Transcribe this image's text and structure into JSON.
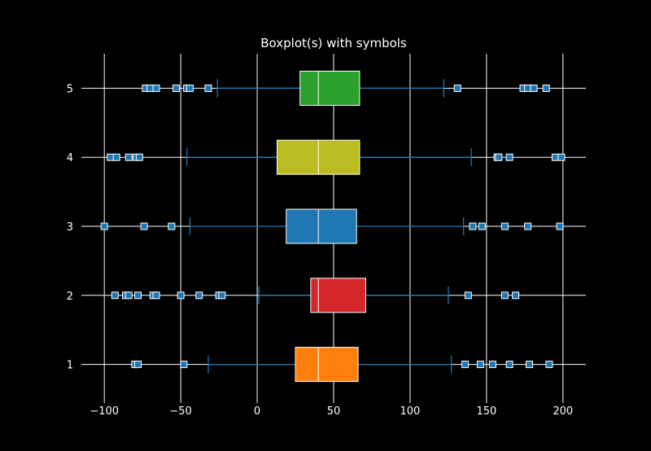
{
  "chart_data": {
    "type": "boxplot",
    "orientation": "horizontal",
    "title": "Boxplot(s) with symbols",
    "xlabel": "",
    "ylabel": "",
    "xlim": [
      -115,
      215
    ],
    "ylim": [
      0.5,
      5.5
    ],
    "xticks": [
      -100,
      -50,
      0,
      50,
      100,
      150,
      200
    ],
    "xtick_labels": [
      "−100",
      "−50",
      "0",
      "50",
      "100",
      "150",
      "200"
    ],
    "yticks": [
      1,
      2,
      3,
      4,
      5
    ],
    "ytick_labels": [
      "1",
      "2",
      "3",
      "4",
      "5"
    ],
    "grid": true,
    "colors": {
      "background": "#000000",
      "foreground": "#ffffff",
      "whisker": "#1f77b4",
      "flier_fill": "#1f77b4",
      "flier_edge": "#ffffff"
    },
    "boxes": [
      {
        "position": 1,
        "q1": 25,
        "median": 40,
        "q3": 66,
        "whisker_low": -32,
        "whisker_high": 127,
        "color": "#ff7f0e",
        "fliers": [
          -80,
          -78,
          -48,
          136,
          146,
          154,
          165,
          178,
          191
        ]
      },
      {
        "position": 2,
        "q1": 35,
        "median": 40,
        "q3": 71,
        "whisker_low": 1,
        "whisker_high": 125,
        "color": "#d62728",
        "fliers": [
          -93,
          -86,
          -84,
          -78,
          -68,
          -66,
          -50,
          -38,
          -25,
          -23,
          138,
          162,
          169
        ]
      },
      {
        "position": 3,
        "q1": 19,
        "median": 40,
        "q3": 65,
        "whisker_low": -44,
        "whisker_high": 135,
        "color": "#1f77b4",
        "fliers": [
          -100,
          -74,
          -56,
          141,
          147,
          162,
          177,
          198
        ]
      },
      {
        "position": 4,
        "q1": 13,
        "median": 40,
        "q3": 67,
        "whisker_low": -46,
        "whisker_high": 140,
        "color": "#bcbd22",
        "fliers": [
          -96,
          -92,
          -84,
          -79,
          -77,
          157,
          158,
          165,
          195,
          199
        ]
      },
      {
        "position": 5,
        "q1": 28,
        "median": 40,
        "q3": 67,
        "whisker_low": -26,
        "whisker_high": 122,
        "color": "#2ca02c",
        "fliers": [
          -73,
          -70,
          -66,
          -53,
          -46,
          -44,
          -32,
          131,
          174,
          177,
          181,
          189
        ]
      }
    ]
  }
}
